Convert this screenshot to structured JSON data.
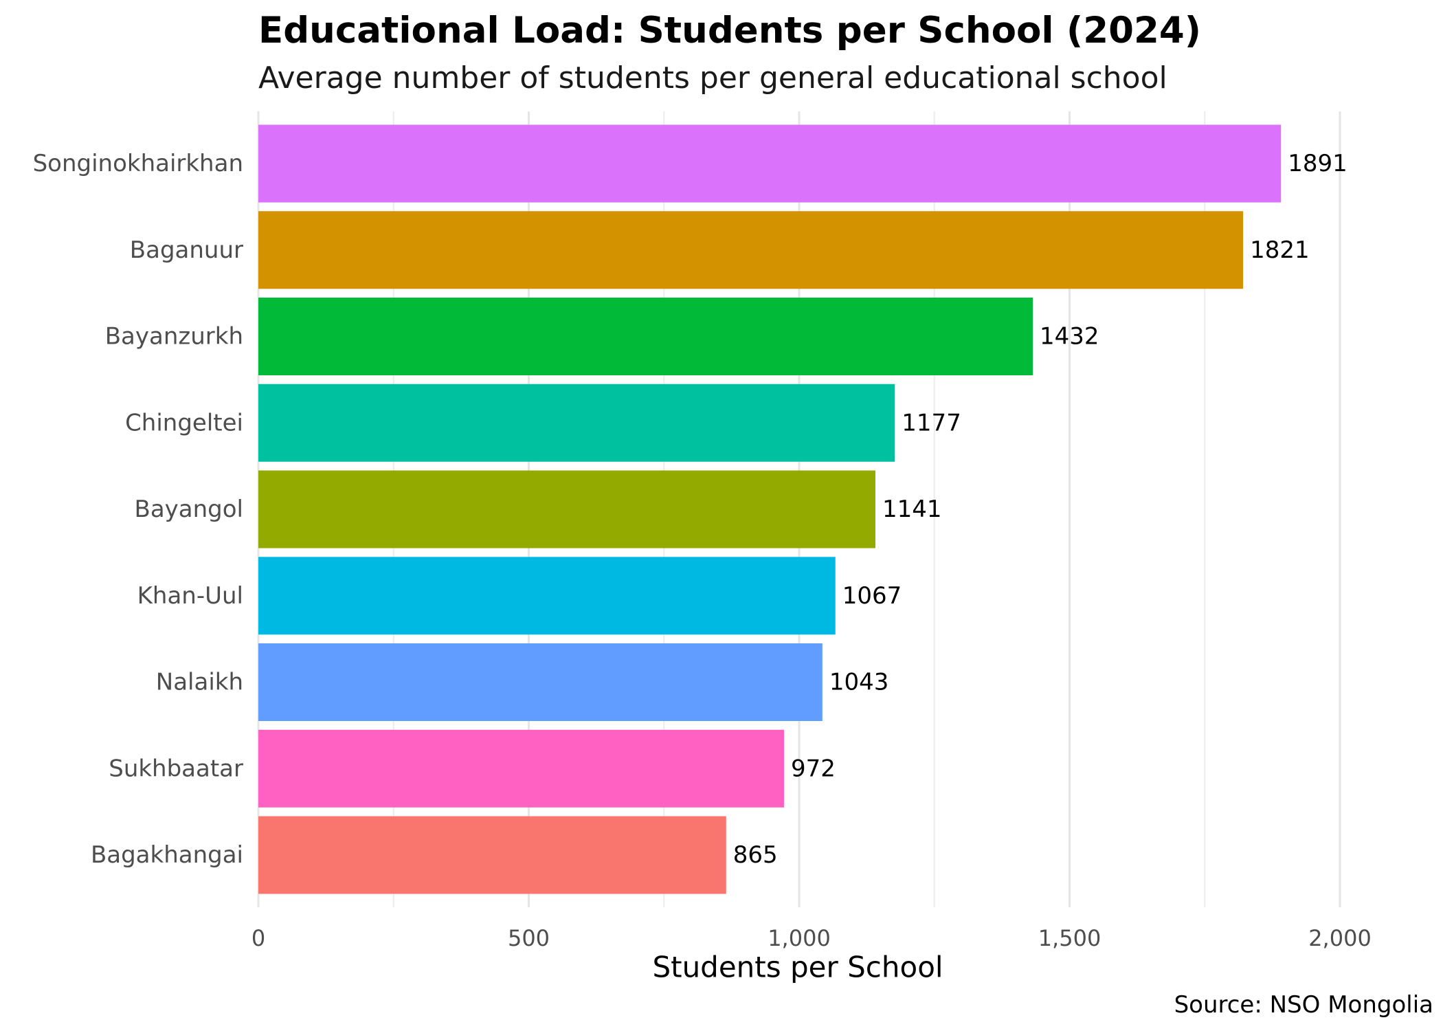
{
  "chart_data": {
    "type": "bar",
    "orientation": "horizontal",
    "title": "Educational Load: Students per School (2024)",
    "subtitle": "Average number of students per general educational school",
    "xlabel": "Students per School",
    "ylabel": "",
    "source": "Source: NSO Mongolia",
    "xlim": [
      0,
      2000
    ],
    "xticks": [
      {
        "value": 0,
        "label": "0"
      },
      {
        "value": 500,
        "label": "500"
      },
      {
        "value": 1000,
        "label": "1,000"
      },
      {
        "value": 1500,
        "label": "1,500"
      },
      {
        "value": 2000,
        "label": "2,000"
      }
    ],
    "grid": true,
    "legend": "none",
    "bars": [
      {
        "category": "Songinokhairkhan",
        "value": 1891,
        "label": "1891",
        "color": "#DB72FB"
      },
      {
        "category": "Baganuur",
        "value": 1821,
        "label": "1821",
        "color": "#D39200"
      },
      {
        "category": "Bayanzurkh",
        "value": 1432,
        "label": "1432",
        "color": "#00BA38"
      },
      {
        "category": "Chingeltei",
        "value": 1177,
        "label": "1177",
        "color": "#00C19F"
      },
      {
        "category": "Bayangol",
        "value": 1141,
        "label": "1141",
        "color": "#93AA00"
      },
      {
        "category": "Khan-Uul",
        "value": 1067,
        "label": "1067",
        "color": "#00B9E3"
      },
      {
        "category": "Nalaikh",
        "value": 1043,
        "label": "1043",
        "color": "#619CFF"
      },
      {
        "category": "Sukhbaatar",
        "value": 972,
        "label": "972",
        "color": "#FF61C3"
      },
      {
        "category": "Bagakhangai",
        "value": 865,
        "label": "865",
        "color": "#F8766D"
      }
    ]
  }
}
